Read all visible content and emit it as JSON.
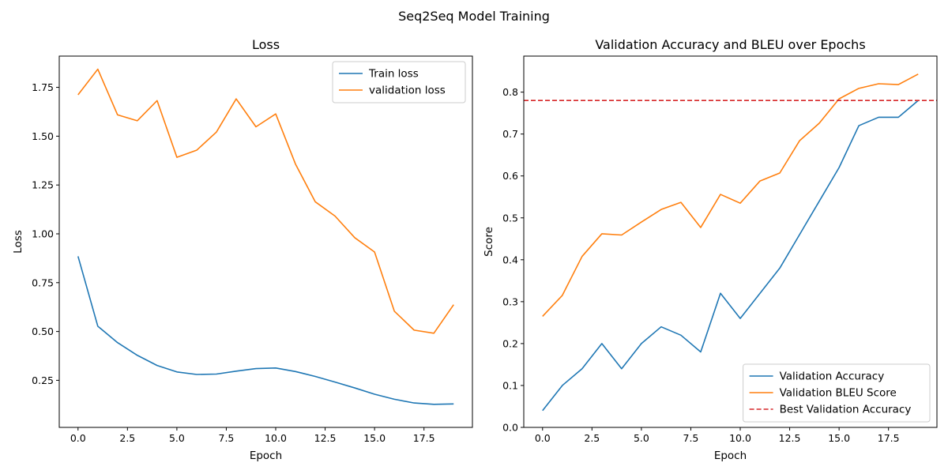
{
  "figure": {
    "title": "Seq2Seq Model Training"
  },
  "chart_data": [
    {
      "type": "line",
      "title": "Loss",
      "xlabel": "Epoch",
      "ylabel": "Loss",
      "xlim": [
        -0.95,
        19.95
      ],
      "ylim": [
        0.009,
        1.91
      ],
      "x": [
        0,
        1,
        2,
        3,
        4,
        5,
        6,
        7,
        8,
        9,
        10,
        11,
        12,
        13,
        14,
        15,
        16,
        17,
        18,
        19
      ],
      "xticks": [
        0,
        2.5,
        5,
        7.5,
        10,
        12.5,
        15,
        17.5
      ],
      "xtick_labels": [
        "0.0",
        "2.5",
        "5.0",
        "7.5",
        "10.0",
        "12.5",
        "15.0",
        "17.5"
      ],
      "yticks": [
        0.25,
        0.5,
        0.75,
        1.0,
        1.25,
        1.5,
        1.75
      ],
      "ytick_labels": [
        "0.25",
        "0.50",
        "0.75",
        "1.00",
        "1.25",
        "1.50",
        "1.75"
      ],
      "legend_position": "upper right",
      "grid": false,
      "series": [
        {
          "name": "Train loss",
          "color": "#1f77b4",
          "style": "solid",
          "values": [
            0.885,
            0.527,
            0.443,
            0.378,
            0.326,
            0.293,
            0.28,
            0.282,
            0.297,
            0.31,
            0.313,
            0.295,
            0.27,
            0.241,
            0.211,
            0.179,
            0.153,
            0.134,
            0.127,
            0.129
          ]
        },
        {
          "name": "validation loss",
          "color": "#ff7f0e",
          "style": "solid",
          "values": [
            1.712,
            1.843,
            1.609,
            1.579,
            1.682,
            1.392,
            1.428,
            1.521,
            1.691,
            1.548,
            1.614,
            1.357,
            1.164,
            1.091,
            0.98,
            0.907,
            0.604,
            0.507,
            0.491,
            0.637
          ]
        }
      ]
    },
    {
      "type": "line",
      "title": "Validation Accuracy and BLEU over Epochs",
      "xlabel": "Epoch",
      "ylabel": "Score",
      "xlim": [
        -0.95,
        19.95
      ],
      "ylim": [
        0.0,
        0.886
      ],
      "x": [
        0,
        1,
        2,
        3,
        4,
        5,
        6,
        7,
        8,
        9,
        10,
        11,
        12,
        13,
        14,
        15,
        16,
        17,
        18,
        19
      ],
      "xticks": [
        0,
        2.5,
        5,
        7.5,
        10,
        12.5,
        15,
        17.5
      ],
      "xtick_labels": [
        "0.0",
        "2.5",
        "5.0",
        "7.5",
        "10.0",
        "12.5",
        "15.0",
        "17.5"
      ],
      "yticks": [
        0.0,
        0.1,
        0.2,
        0.3,
        0.4,
        0.5,
        0.6,
        0.7,
        0.8
      ],
      "ytick_labels": [
        "0.0",
        "0.1",
        "0.2",
        "0.3",
        "0.4",
        "0.5",
        "0.6",
        "0.7",
        "0.8"
      ],
      "legend_position": "lower right",
      "grid": false,
      "series": [
        {
          "name": "Validation Accuracy",
          "color": "#1f77b4",
          "style": "solid",
          "values": [
            0.04,
            0.1,
            0.14,
            0.2,
            0.14,
            0.2,
            0.24,
            0.22,
            0.18,
            0.32,
            0.26,
            0.32,
            0.38,
            0.46,
            0.54,
            0.62,
            0.72,
            0.74,
            0.74,
            0.78
          ]
        },
        {
          "name": "Validation BLEU Score",
          "color": "#ff7f0e",
          "style": "solid",
          "values": [
            0.265,
            0.315,
            0.408,
            0.462,
            0.459,
            0.49,
            0.52,
            0.537,
            0.477,
            0.556,
            0.535,
            0.588,
            0.607,
            0.684,
            0.726,
            0.784,
            0.809,
            0.82,
            0.818,
            0.843
          ]
        }
      ],
      "hlines": [
        {
          "name": "Best Validation Accuracy",
          "color": "#d62728",
          "style": "dashed",
          "value": 0.78
        }
      ]
    }
  ]
}
